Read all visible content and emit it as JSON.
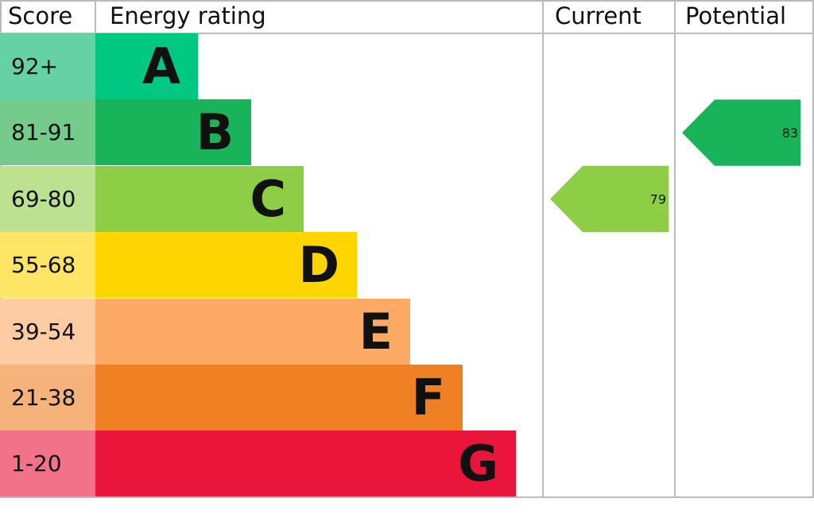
{
  "headers": {
    "score": "Score",
    "rating": "Energy rating",
    "current": "Current",
    "potential": "Potential"
  },
  "chart_data": {
    "type": "bar",
    "bands": [
      {
        "letter": "A",
        "range": "92+",
        "color": "#00c781",
        "light": "#66d1a4"
      },
      {
        "letter": "B",
        "range": "81-91",
        "color": "#19b459",
        "light": "#74cb8b"
      },
      {
        "letter": "C",
        "range": "69-80",
        "color": "#8dce46",
        "light": "#bce190"
      },
      {
        "letter": "D",
        "range": "55-68",
        "color": "#ffd500",
        "light": "#ffe566"
      },
      {
        "letter": "E",
        "range": "39-54",
        "color": "#fcaa65",
        "light": "#fdcca3"
      },
      {
        "letter": "F",
        "range": "21-38",
        "color": "#ef8023",
        "light": "#f5b27b"
      },
      {
        "letter": "G",
        "range": "1-20",
        "color": "#e9153b",
        "light": "#f27389"
      }
    ],
    "current": {
      "value": "79",
      "band": "C"
    },
    "potential": {
      "value": "83",
      "band": "B"
    }
  }
}
